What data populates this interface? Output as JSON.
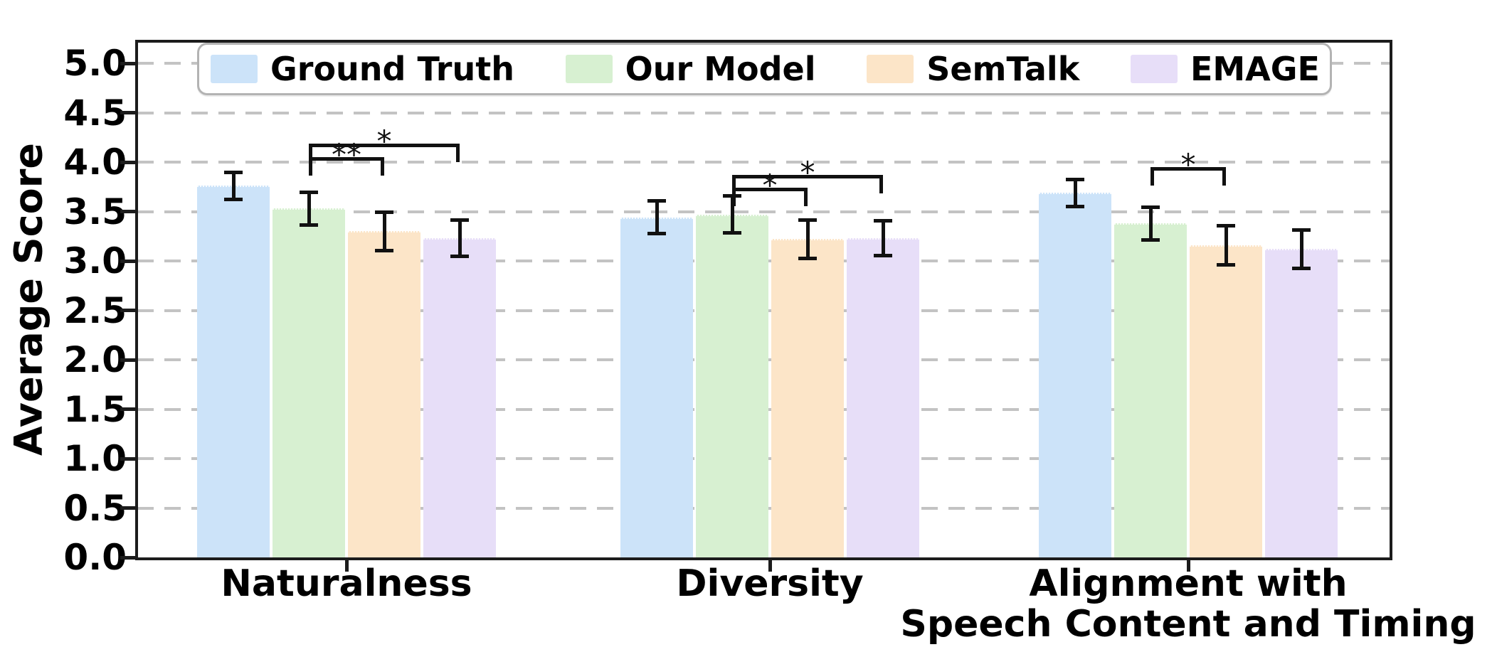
{
  "figure": {
    "background": "#ffffff",
    "axis_color": "#1c1c1c",
    "grid_color": "#c3c3c3",
    "error_bar_color": "#111111"
  },
  "chart_data": {
    "type": "bar",
    "title": "",
    "xlabel": "",
    "ylabel": "Average Score",
    "ylim": [
      0.0,
      5.2
    ],
    "grid": "horizontal dashed gridlines at every 0.5",
    "legend_position": "upper center, single row of 4 entries",
    "yticks": [
      "5.0",
      "4.5",
      "4.0",
      "3.5",
      "3.0",
      "2.5",
      "2.0",
      "1.5",
      "1.0",
      "0.5",
      "0.0"
    ],
    "categories": [
      {
        "lines": [
          "Naturalness"
        ]
      },
      {
        "lines": [
          "Diversity"
        ]
      },
      {
        "lines": [
          "Alignment with",
          "Speech Content and Timing"
        ]
      }
    ],
    "series": [
      {
        "name": "Ground Truth",
        "color": "#cce3f9",
        "values": [
          3.76,
          3.44,
          3.69
        ],
        "errors": [
          0.14,
          0.17,
          0.14
        ]
      },
      {
        "name": "Our Model",
        "color": "#d7f0d1",
        "values": [
          3.53,
          3.47,
          3.38
        ],
        "errors": [
          0.17,
          0.19,
          0.17
        ]
      },
      {
        "name": "SemTalk",
        "color": "#fce5c8",
        "values": [
          3.3,
          3.22,
          3.16
        ],
        "errors": [
          0.2,
          0.2,
          0.2
        ]
      },
      {
        "name": "EMAGE",
        "color": "#e7def8",
        "values": [
          3.23,
          3.23,
          3.12
        ],
        "errors": [
          0.19,
          0.18,
          0.2
        ]
      }
    ],
    "significance_brackets": [
      {
        "category_index": 0,
        "from_series": 1,
        "to_series": 2,
        "label": "**",
        "height_value": 4.05
      },
      {
        "category_index": 0,
        "from_series": 1,
        "to_series": 3,
        "label": "*",
        "height_value": 4.19
      },
      {
        "category_index": 1,
        "from_series": 1,
        "to_series": 2,
        "label": "*",
        "height_value": 3.74
      },
      {
        "category_index": 1,
        "from_series": 1,
        "to_series": 3,
        "label": "*",
        "height_value": 3.87
      },
      {
        "category_index": 2,
        "from_series": 1,
        "to_series": 2,
        "label": "*",
        "height_value": 3.95
      }
    ]
  }
}
